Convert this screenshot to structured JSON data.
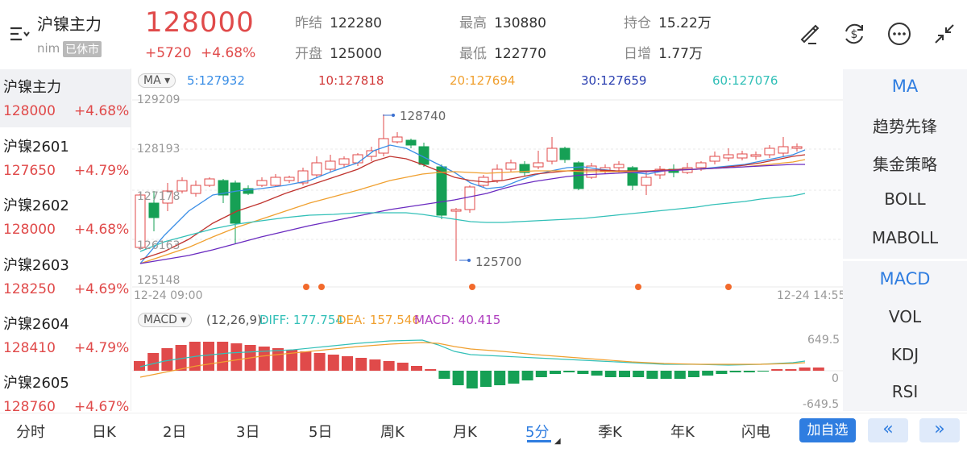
{
  "header": {
    "title": "沪镍主力",
    "exchange": "nim",
    "status_badge": "已休市",
    "price": "128000",
    "change": "+5720",
    "change_pct": "+4.68%",
    "stats": [
      {
        "label": "昨结",
        "value": "122280",
        "color": "#333"
      },
      {
        "label": "最高",
        "value": "130880",
        "color": "#e04a4a"
      },
      {
        "label": "持仓",
        "value": "15.22万",
        "color": "#333"
      },
      {
        "label": "开盘",
        "value": "125000",
        "color": "#e04a4a"
      },
      {
        "label": "最低",
        "value": "122770",
        "color": "#e04a4a"
      },
      {
        "label": "日增",
        "value": "1.77万",
        "color": "#333"
      }
    ]
  },
  "sidebar": {
    "items": [
      {
        "name": "沪镍主力",
        "price": "128000",
        "pct": "+4.68%"
      },
      {
        "name": "沪镍2601",
        "price": "127650",
        "pct": "+4.79%"
      },
      {
        "name": "沪镍2602",
        "price": "128000",
        "pct": "+4.68%"
      },
      {
        "name": "沪镍2603",
        "price": "128250",
        "pct": "+4.69%"
      },
      {
        "name": "沪镍2604",
        "price": "128410",
        "pct": "+4.79%"
      },
      {
        "name": "沪镍2605",
        "price": "128760",
        "pct": "+4.67%"
      }
    ]
  },
  "ma_bar": {
    "dropdown": "MA",
    "items": [
      {
        "text": "5:127932",
        "color": "#3a8ee6"
      },
      {
        "text": "10:127818",
        "color": "#d23b3b"
      },
      {
        "text": "20:127694",
        "color": "#f0a030"
      },
      {
        "text": "30:127659",
        "color": "#2a3fb0"
      },
      {
        "text": "60:127076",
        "color": "#33c0b8"
      }
    ]
  },
  "main_axis": {
    "y_labels": [
      "129209",
      "128193",
      "127178",
      "126163",
      "125148"
    ],
    "x_left": "12-24 09:00",
    "x_right": "12-24 14:55",
    "high_label": "128740",
    "low_label": "125700"
  },
  "macd_bar": {
    "dropdown": "MACD",
    "params": "(12,26,9):",
    "diff": "DIFF: 177.754",
    "dea": "DEA: 157.546",
    "macd": "MACD: 40.415",
    "y_top": "649.5",
    "y_mid": "0",
    "y_bottom": "-649.5"
  },
  "right_panel": {
    "top": [
      "MA",
      "趋势先锋",
      "集金策略",
      "BOLL",
      "MABOLL"
    ],
    "bottom": [
      "MACD",
      "VOL",
      "KDJ",
      "RSI"
    ]
  },
  "tabs": [
    "分时",
    "日K",
    "2日",
    "3日",
    "5日",
    "周K",
    "月K",
    "5分",
    "季K",
    "年K",
    "闪电"
  ],
  "active_tab": "5分",
  "add_button": "加自选",
  "prev_label": "«",
  "next_label": "»",
  "colors": {
    "up": "#e04a4a",
    "down": "#16a055",
    "accent": "#2f7de0"
  }
}
